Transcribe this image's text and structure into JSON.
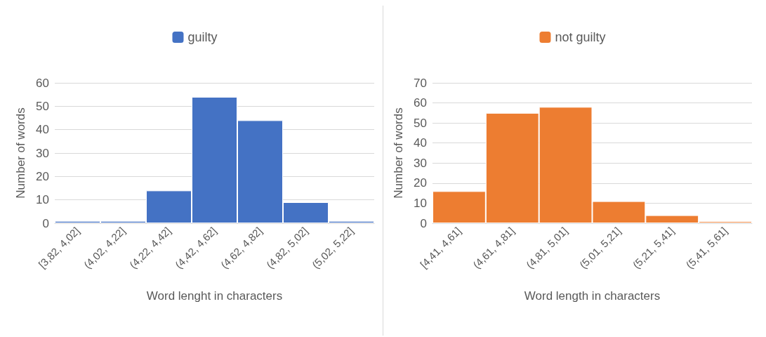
{
  "chart_data": [
    {
      "type": "bar",
      "xlabel": "Word lenght in characters",
      "ylabel": "Number of words",
      "categories": [
        "[3,82, 4,02]",
        "(4,02, 4,22]",
        "(4,22, 4,42]",
        "(4,42, 4,62]",
        "(4,62, 4,82]",
        "(4,82, 5,02]",
        "(5,02, 5,22]"
      ],
      "series": [
        {
          "name": "guilty",
          "color": "#4472c4",
          "values": [
            1,
            1,
            14,
            54,
            44,
            9,
            1
          ]
        }
      ],
      "ylim": [
        0,
        60
      ],
      "yticks": [
        0,
        10,
        20,
        30,
        40,
        50,
        60
      ],
      "grid": "y",
      "legend": "top"
    },
    {
      "type": "bar",
      "xlabel": "Word length in characters",
      "ylabel": "Number of words",
      "categories": [
        "[4,41, 4,61]",
        "(4,61, 4,81]",
        "(4,81, 5,01]",
        "(5,01, 5,21]",
        "(5,21, 5,41]",
        "(5,41, 5,61]"
      ],
      "series": [
        {
          "name": "not guilty",
          "color": "#ed7d31",
          "values": [
            16,
            55,
            58,
            11,
            4,
            1
          ]
        }
      ],
      "ylim": [
        0,
        70
      ],
      "yticks": [
        0,
        10,
        20,
        30,
        40,
        50,
        60,
        70
      ],
      "grid": "y",
      "legend": "top"
    }
  ]
}
